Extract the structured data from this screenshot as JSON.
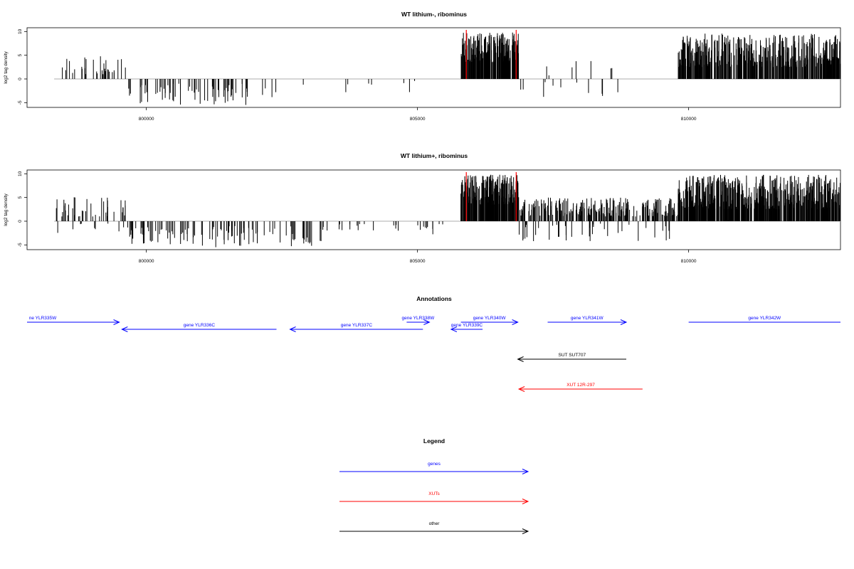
{
  "chart_data": [
    {
      "type": "bar",
      "title": "WT lithium-, ribominus",
      "ylabel": "log2 tag density",
      "xlim": [
        797800,
        812800
      ],
      "ylim": [
        -6,
        10.8
      ],
      "x_ticks": [
        "800000",
        "805000",
        "810000"
      ],
      "y_ticks": [
        "-5",
        "0",
        "5",
        "10"
      ],
      "grid": false,
      "regions": [
        {
          "x_start": 798300,
          "x_end": 799650,
          "min": 1.0,
          "max": 4.8,
          "sign": "plus",
          "bars": 32
        },
        {
          "x_start": 799650,
          "x_end": 802400,
          "min": -5.5,
          "max": -1.0,
          "sign": "minus",
          "bars": 70
        },
        {
          "x_start": 802800,
          "x_end": 805000,
          "min": -3.0,
          "max": -0.4,
          "sign": "minus",
          "bars": 8
        },
        {
          "x_start": 805800,
          "x_end": 806870,
          "min": 3.5,
          "max": 9.8,
          "sign": "plus",
          "bars": 220
        },
        {
          "x_start": 806900,
          "x_end": 808800,
          "min": -3.8,
          "max": 3.5,
          "sign": "mixed",
          "bars": 18
        },
        {
          "x_start": 809800,
          "x_end": 812800,
          "min": 2.5,
          "max": 9.6,
          "sign": "plus",
          "bars": 460
        }
      ],
      "markers": [
        805900,
        806820
      ]
    },
    {
      "type": "bar",
      "title": "WT lithium+, ribominus",
      "ylabel": "log2 tag density",
      "xlim": [
        797800,
        812800
      ],
      "ylim": [
        -6,
        10.8
      ],
      "x_ticks": [
        "800000",
        "805000",
        "810000"
      ],
      "y_ticks": [
        "-5",
        "0",
        "5",
        "10"
      ],
      "grid": false,
      "regions": [
        {
          "x_start": 798300,
          "x_end": 799650,
          "min": 1.0,
          "max": 5.3,
          "sign": "plus",
          "bars": 40
        },
        {
          "x_start": 798300,
          "x_end": 799650,
          "min": -2.5,
          "max": -0.5,
          "sign": "minus",
          "bars": 10
        },
        {
          "x_start": 799650,
          "x_end": 803300,
          "min": -5.5,
          "max": -1.0,
          "sign": "minus",
          "bars": 110
        },
        {
          "x_start": 803300,
          "x_end": 805700,
          "min": -3.2,
          "max": -0.5,
          "sign": "minus",
          "bars": 25
        },
        {
          "x_start": 805800,
          "x_end": 806870,
          "min": 3.5,
          "max": 9.8,
          "sign": "plus",
          "bars": 220
        },
        {
          "x_start": 806870,
          "x_end": 809800,
          "min": 1.0,
          "max": 5.0,
          "sign": "plus",
          "bars": 260
        },
        {
          "x_start": 806870,
          "x_end": 809800,
          "min": -4.5,
          "max": -0.5,
          "sign": "minus",
          "bars": 40
        },
        {
          "x_start": 809800,
          "x_end": 812800,
          "min": 2.5,
          "max": 9.8,
          "sign": "plus",
          "bars": 520
        }
      ],
      "markers": [
        805900,
        806820
      ]
    }
  ],
  "annotations": {
    "title": "Annotations",
    "features": [
      {
        "label": "ne YLR335W",
        "x_start": 797800,
        "x_end": 799500,
        "dir": "right",
        "type": "genes"
      },
      {
        "label": "gene YLR336C",
        "x_start": 799550,
        "x_end": 802400,
        "dir": "left",
        "type": "genes"
      },
      {
        "label": "gene YLR337C",
        "x_start": 802650,
        "x_end": 805100,
        "dir": "left",
        "type": "genes"
      },
      {
        "label": "gene YLR338W",
        "x_start": 804800,
        "x_end": 805220,
        "dir": "right",
        "type": "genes"
      },
      {
        "label": "gene YLR340W",
        "x_start": 805800,
        "x_end": 806850,
        "dir": "right",
        "type": "genes"
      },
      {
        "label": "gene YLR339C",
        "x_start": 805620,
        "x_end": 806200,
        "dir": "left",
        "type": "genes"
      },
      {
        "label": "gene YLR341W",
        "x_start": 807400,
        "x_end": 808850,
        "dir": "right",
        "type": "genes"
      },
      {
        "label": "gene YLR342W",
        "x_start": 810000,
        "x_end": 812800,
        "dir": "none",
        "type": "genes"
      },
      {
        "label": "SUT SUT707",
        "x_start": 806850,
        "x_end": 808850,
        "dir": "left",
        "type": "other"
      },
      {
        "label": "XUT 12R-297",
        "x_start": 806870,
        "x_end": 809150,
        "dir": "left",
        "type": "XUTs"
      }
    ]
  },
  "legend": {
    "title": "Legend",
    "items": [
      {
        "label": "genes",
        "color": "#0000ff"
      },
      {
        "label": "XUTs",
        "color": "#ff0000"
      },
      {
        "label": "other",
        "color": "#000000"
      }
    ]
  },
  "colors": {
    "genes": "#0000ff",
    "XUTs": "#ff0000",
    "other": "#000000",
    "bars": "#000000",
    "markers": "#ff0000",
    "baseline": "#bebebe"
  }
}
